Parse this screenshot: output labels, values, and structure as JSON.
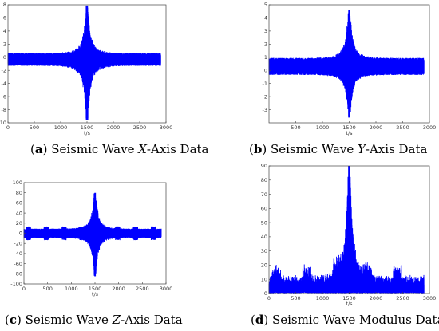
{
  "chart_data": [
    {
      "type": "line",
      "id": "a",
      "caption": {
        "letter": "a",
        "before": "Seismic Wave ",
        "italic": "X",
        "after": "-Axis Data"
      },
      "xlabel": "t/s",
      "xlim": [
        0,
        3000
      ],
      "ylim": [
        -10,
        8
      ],
      "xticks": [
        0,
        500,
        1000,
        1500,
        2000,
        2500,
        3000
      ],
      "yticks": [
        -10,
        -8,
        -6,
        -4,
        -2,
        0,
        2,
        4,
        6,
        8
      ],
      "series": [
        {
          "color": "#0000ff",
          "x_range": [
            0,
            2900
          ],
          "baseline": -0.4,
          "background_band": [
            -1.1,
            0.4
          ],
          "peak_x": 1500,
          "peak_max": 7.9,
          "peak_min": -9.6
        }
      ],
      "grid": false
    },
    {
      "type": "line",
      "id": "b",
      "caption": {
        "letter": "b",
        "before": "Seismic Wave ",
        "italic": "Y",
        "after": "-Axis Data"
      },
      "xlabel": "t/s",
      "xlim": [
        0,
        3000
      ],
      "ylim": [
        -4,
        5
      ],
      "xticks": [
        500,
        1000,
        1500,
        2000,
        2500,
        3000
      ],
      "yticks": [
        -3,
        -2,
        -1,
        0,
        1,
        2,
        3,
        4,
        5
      ],
      "series": [
        {
          "color": "#0000ff",
          "x_range": [
            0,
            2900
          ],
          "baseline": 0.3,
          "background_band": [
            -0.2,
            0.8
          ],
          "peak_x": 1500,
          "peak_max": 4.6,
          "peak_min": -3.6
        }
      ],
      "grid": false
    },
    {
      "type": "line",
      "id": "c",
      "caption": {
        "letter": "c",
        "before": "Seismic Wave ",
        "italic": "Z",
        "after": "-Axis Data"
      },
      "xlabel": "t/s",
      "xlim": [
        0,
        3000
      ],
      "ylim": [
        -100,
        100
      ],
      "xticks": [
        0,
        500,
        1000,
        1500,
        2000,
        2500,
        3000
      ],
      "yticks": [
        -100,
        -80,
        -60,
        -40,
        -20,
        0,
        20,
        40,
        60,
        80,
        100
      ],
      "series": [
        {
          "color": "#0000ff",
          "x_range": [
            0,
            2900
          ],
          "baseline": 0,
          "background_band": [
            -7,
            7
          ],
          "peak_x": 1500,
          "peak_max": 80,
          "peak_min": -85
        }
      ],
      "grid": false
    },
    {
      "type": "line",
      "id": "d",
      "caption": {
        "letter": "d",
        "before": "Seismic Wave Modulus Data",
        "italic": "",
        "after": ""
      },
      "xlabel": "t/s",
      "xlim": [
        0,
        3000
      ],
      "ylim": [
        0,
        90
      ],
      "xticks": [
        0,
        500,
        1000,
        1500,
        2000,
        2500,
        3000
      ],
      "yticks": [
        0,
        10,
        20,
        30,
        40,
        50,
        60,
        70,
        80,
        90
      ],
      "series": [
        {
          "color": "#0000ff",
          "x_range": [
            0,
            2900
          ],
          "baseline": 0,
          "background_band": [
            0,
            10
          ],
          "peak_x": 1500,
          "peak_max": 86,
          "peak_min": 0
        }
      ],
      "grid": false
    }
  ]
}
